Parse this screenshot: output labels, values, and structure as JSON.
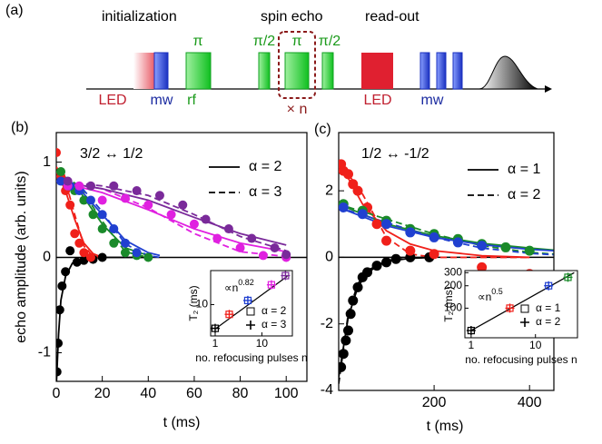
{
  "diagram": {
    "panel_label": "(a)",
    "stage_labels": [
      "initialization",
      "spin echo",
      "read-out"
    ],
    "pulse_labels": [
      "π",
      "π/2",
      "π",
      "π/2"
    ],
    "channel_labels": [
      "LED",
      "mw",
      "rf",
      "LED",
      "mw"
    ],
    "repeat_label": "× n"
  },
  "chart_data": [
    {
      "type": "scatter",
      "panel_label": "(b)",
      "annotation": "3/2 ↔ 1/2",
      "x_label": "t (ms)",
      "y_label": "echo amplitude (arb. units)",
      "xlim": [
        0,
        109
      ],
      "xticks": [
        0,
        20,
        40,
        60,
        80,
        100
      ],
      "ylim": [
        -1.3,
        1.31
      ],
      "yticks": [
        -1,
        0,
        1
      ],
      "line_legend": [
        {
          "label": "α = 2",
          "dash": "solid"
        },
        {
          "label": "α = 3",
          "dash": "dashed"
        }
      ],
      "series": [
        {
          "color": "#000000",
          "x": [
            0.3,
            0.8,
            1.5,
            2.5,
            4,
            6,
            9,
            12,
            16,
            20
          ],
          "values": [
            -1.2,
            -0.9,
            -0.55,
            -0.3,
            -0.15,
            0.07,
            -0.05,
            -0.03,
            -0.02,
            0
          ],
          "fit_x": [
            0,
            1,
            2,
            4,
            7,
            12,
            20,
            40
          ],
          "fit_solid": [
            -1.35,
            -0.8,
            -0.45,
            -0.2,
            -0.06,
            -0.01,
            0,
            0
          ]
        },
        {
          "color": "#f0201a",
          "x": [
            0,
            2,
            4,
            6,
            8,
            10,
            12,
            15
          ],
          "values": [
            1.1,
            0.85,
            0.7,
            0.55,
            0.25,
            0.15,
            0.05,
            0
          ],
          "fit_x": [
            0,
            4,
            8,
            12,
            16,
            20
          ],
          "fit_solid": [
            0.9,
            0.7,
            0.4,
            0.15,
            0.04,
            0
          ],
          "fit_dashed": [
            0.95,
            0.8,
            0.45,
            0.12,
            0.01,
            0
          ]
        },
        {
          "color": "#1a8a2a",
          "x": [
            2,
            5,
            8,
            12,
            16,
            20,
            25,
            30,
            35,
            40
          ],
          "values": [
            0.9,
            0.75,
            0.7,
            0.6,
            0.45,
            0.3,
            0.15,
            0.05,
            0.02,
            0
          ],
          "fit_x": [
            0,
            10,
            20,
            30,
            40
          ],
          "fit_solid": [
            0.9,
            0.7,
            0.35,
            0.1,
            0.02
          ],
          "fit_dashed": [
            0.9,
            0.75,
            0.38,
            0.06,
            0
          ]
        },
        {
          "color": "#2040d0",
          "x": [
            2,
            6,
            10,
            15,
            20,
            25,
            30,
            35
          ],
          "values": [
            0.8,
            0.75,
            0.7,
            0.6,
            0.45,
            0.3,
            0.15,
            0.05
          ],
          "fit_x": [
            0,
            10,
            20,
            30,
            40,
            45
          ],
          "fit_solid": [
            0.85,
            0.72,
            0.45,
            0.18,
            0.05,
            0.02
          ],
          "fit_dashed": [
            0.85,
            0.76,
            0.48,
            0.14,
            0.02,
            0
          ]
        },
        {
          "color": "#e020e0",
          "x": [
            5,
            10,
            20,
            30,
            40,
            50,
            60,
            70,
            80,
            90,
            100
          ],
          "values": [
            0.75,
            0.75,
            0.6,
            0.62,
            0.55,
            0.45,
            0.35,
            0.2,
            0.1,
            0.02,
            0
          ],
          "fit_x": [
            0,
            20,
            40,
            60,
            80,
            100
          ],
          "fit_solid": [
            0.8,
            0.68,
            0.5,
            0.3,
            0.15,
            0.06
          ],
          "fit_dashed": [
            0.8,
            0.72,
            0.52,
            0.25,
            0.06,
            0.01
          ]
        },
        {
          "color": "#7a2a9a",
          "x": [
            5,
            15,
            25,
            35,
            45,
            55,
            65,
            75,
            85,
            95,
            100
          ],
          "values": [
            0.8,
            0.75,
            0.75,
            0.7,
            0.65,
            0.55,
            0.4,
            0.3,
            0.2,
            0.1,
            0.03
          ],
          "fit_x": [
            0,
            20,
            40,
            60,
            80,
            100
          ],
          "fit_solid": [
            0.8,
            0.72,
            0.6,
            0.42,
            0.25,
            0.13
          ],
          "fit_dashed": [
            0.8,
            0.75,
            0.65,
            0.45,
            0.22,
            0.07
          ]
        }
      ],
      "inset": {
        "log": true,
        "xlim": [
          0.8,
          45
        ],
        "ylim": [
          2.5,
          45
        ],
        "xticks": [
          1,
          10
        ],
        "yticks": [
          10
        ],
        "x_label": "no. refocusing pulses n",
        "y_label": "T₂ (ms)",
        "fit_label": "∝n",
        "fit_exponent": "0.82",
        "points": {
          "x": [
            1,
            2,
            5,
            16,
            32
          ],
          "values": [
            3.5,
            6.5,
            12,
            24,
            36
          ],
          "colors": [
            "#000000",
            "#f0201a",
            "#2040d0",
            "#e020e0",
            "#7a2a9a"
          ]
        },
        "fit_line": {
          "x": [
            1,
            35
          ],
          "values": [
            3.4,
            35
          ]
        },
        "legend": [
          {
            "label": "α = 2",
            "marker": "square"
          },
          {
            "label": "α = 3",
            "marker": "plus"
          }
        ]
      }
    },
    {
      "type": "scatter",
      "panel_label": "(c)",
      "annotation": "1/2 ↔ -1/2",
      "x_label": "t (ms)",
      "xlim": [
        0,
        451
      ],
      "xticks": [
        200,
        400
      ],
      "ylim": [
        -4,
        3.75
      ],
      "yticks": [
        -4,
        -2,
        0,
        2
      ],
      "line_legend": [
        {
          "label": "α = 1",
          "dash": "solid"
        },
        {
          "label": "α = 2",
          "dash": "dashed"
        }
      ],
      "series": [
        {
          "color": "#000000",
          "x": [
            5,
            10,
            15,
            20,
            25,
            30,
            40,
            50,
            60,
            80,
            100,
            120,
            150,
            190
          ],
          "values": [
            -3.3,
            -2.9,
            -2.5,
            -2.2,
            -1.7,
            -1.3,
            -0.9,
            -0.6,
            -0.45,
            -0.25,
            -0.15,
            -0.05,
            0,
            0
          ],
          "fit_x": [
            0,
            20,
            40,
            60,
            100,
            150,
            200
          ],
          "fit_solid": [
            -3.6,
            -1.8,
            -0.9,
            -0.45,
            -0.12,
            -0.03,
            0
          ],
          "fit_dashed": [
            -3.8,
            -1.7,
            -0.8,
            -0.4,
            -0.1,
            -0.02,
            0
          ]
        },
        {
          "color": "#f0201a",
          "x": [
            5,
            10,
            20,
            30,
            40,
            60,
            80,
            100,
            150,
            200,
            300,
            400
          ],
          "values": [
            2.8,
            2.6,
            2.5,
            2.2,
            2.0,
            1.5,
            1.0,
            0.5,
            0.2,
            0.1,
            -0.3,
            -0.5
          ],
          "fit_x": [
            0,
            50,
            100,
            150,
            200,
            300,
            400
          ],
          "fit_solid": [
            2.9,
            1.6,
            0.8,
            0.4,
            0.2,
            0.05,
            0
          ],
          "fit_dashed": [
            2.9,
            1.9,
            0.6,
            0.1,
            0,
            0,
            0
          ]
        },
        {
          "color": "#1a8a2a",
          "x": [
            10,
            50,
            100,
            150,
            200,
            250,
            300,
            350,
            400
          ],
          "values": [
            1.6,
            1.4,
            1.1,
            0.85,
            0.7,
            0.55,
            0.4,
            0.3,
            0.2
          ],
          "fit_x": [
            0,
            100,
            200,
            300,
            400,
            450
          ],
          "fit_solid": [
            1.6,
            1.0,
            0.65,
            0.42,
            0.28,
            0.22
          ],
          "fit_dashed": [
            1.6,
            1.15,
            0.7,
            0.35,
            0.15,
            0.1
          ]
        },
        {
          "color": "#2040d0",
          "x": [
            10,
            50,
            100,
            150,
            200,
            250,
            300
          ],
          "values": [
            1.5,
            1.3,
            1.0,
            0.75,
            0.6,
            0.45,
            0.35
          ],
          "fit_x": [
            0,
            100,
            200,
            300,
            400,
            450
          ],
          "fit_solid": [
            1.5,
            0.95,
            0.6,
            0.38,
            0.24,
            0.2
          ],
          "fit_dashed": [
            1.5,
            1.05,
            0.6,
            0.28,
            0.12,
            0.08
          ]
        }
      ],
      "inset": {
        "log": true,
        "xlim": [
          0.8,
          45
        ],
        "ylim": [
          40,
          320
        ],
        "xticks": [
          1,
          10
        ],
        "yticks": [
          100,
          200,
          300
        ],
        "x_label": "no. refocusing pulses n",
        "y_label": "T₂ (ms)",
        "fit_label": "∝n",
        "fit_exponent": "0.5",
        "points": {
          "x": [
            1,
            4,
            16,
            32
          ],
          "values": [
            50,
            100,
            200,
            260
          ],
          "colors": [
            "#000000",
            "#f0201a",
            "#2040d0",
            "#1a8a2a"
          ]
        },
        "fit_line": {
          "x": [
            1,
            40
          ],
          "values": [
            50,
            300
          ]
        },
        "legend": [
          {
            "label": "α = 1",
            "marker": "square"
          },
          {
            "label": "α = 2",
            "marker": "plus"
          }
        ]
      }
    }
  ]
}
